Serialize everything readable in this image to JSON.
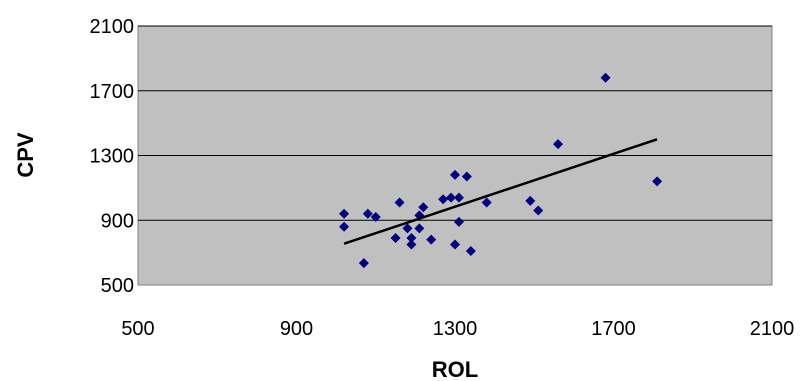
{
  "chart_data": {
    "type": "scatter",
    "title": "",
    "xlabel": "ROL",
    "ylabel": "CPV",
    "xlim": [
      500,
      2100
    ],
    "ylim": [
      500,
      2100
    ],
    "x_ticks": [
      500,
      900,
      1300,
      1700,
      2100
    ],
    "y_ticks": [
      500,
      900,
      1300,
      1700,
      2100
    ],
    "x_tick_labels": [
      "500",
      "900",
      "1300",
      "1700",
      "2100"
    ],
    "y_tick_labels": [
      "500",
      "900",
      "1300",
      "1700",
      "2100"
    ],
    "grid": "horizontal",
    "legend": "none",
    "colors": {
      "plot_background": "#c0c0c0",
      "marker": "#000080",
      "trendline": "#000000",
      "gridline": "#000000"
    },
    "series": [
      {
        "marker": "diamond",
        "points": [
          [
            1020,
            940
          ],
          [
            1020,
            860
          ],
          [
            1070,
            635
          ],
          [
            1080,
            940
          ],
          [
            1100,
            920
          ],
          [
            1150,
            790
          ],
          [
            1160,
            1010
          ],
          [
            1180,
            850
          ],
          [
            1190,
            790
          ],
          [
            1190,
            750
          ],
          [
            1210,
            850
          ],
          [
            1210,
            930
          ],
          [
            1220,
            980
          ],
          [
            1240,
            780
          ],
          [
            1270,
            1030
          ],
          [
            1290,
            1040
          ],
          [
            1300,
            750
          ],
          [
            1300,
            1180
          ],
          [
            1310,
            1040
          ],
          [
            1310,
            890
          ],
          [
            1330,
            1170
          ],
          [
            1340,
            710
          ],
          [
            1380,
            1010
          ],
          [
            1490,
            1020
          ],
          [
            1510,
            960
          ],
          [
            1560,
            1370
          ],
          [
            1680,
            1780
          ],
          [
            1810,
            1140
          ]
        ]
      }
    ],
    "trendline": {
      "type": "linear",
      "x": [
        1020,
        1810
      ],
      "y": [
        755,
        1400
      ]
    }
  }
}
